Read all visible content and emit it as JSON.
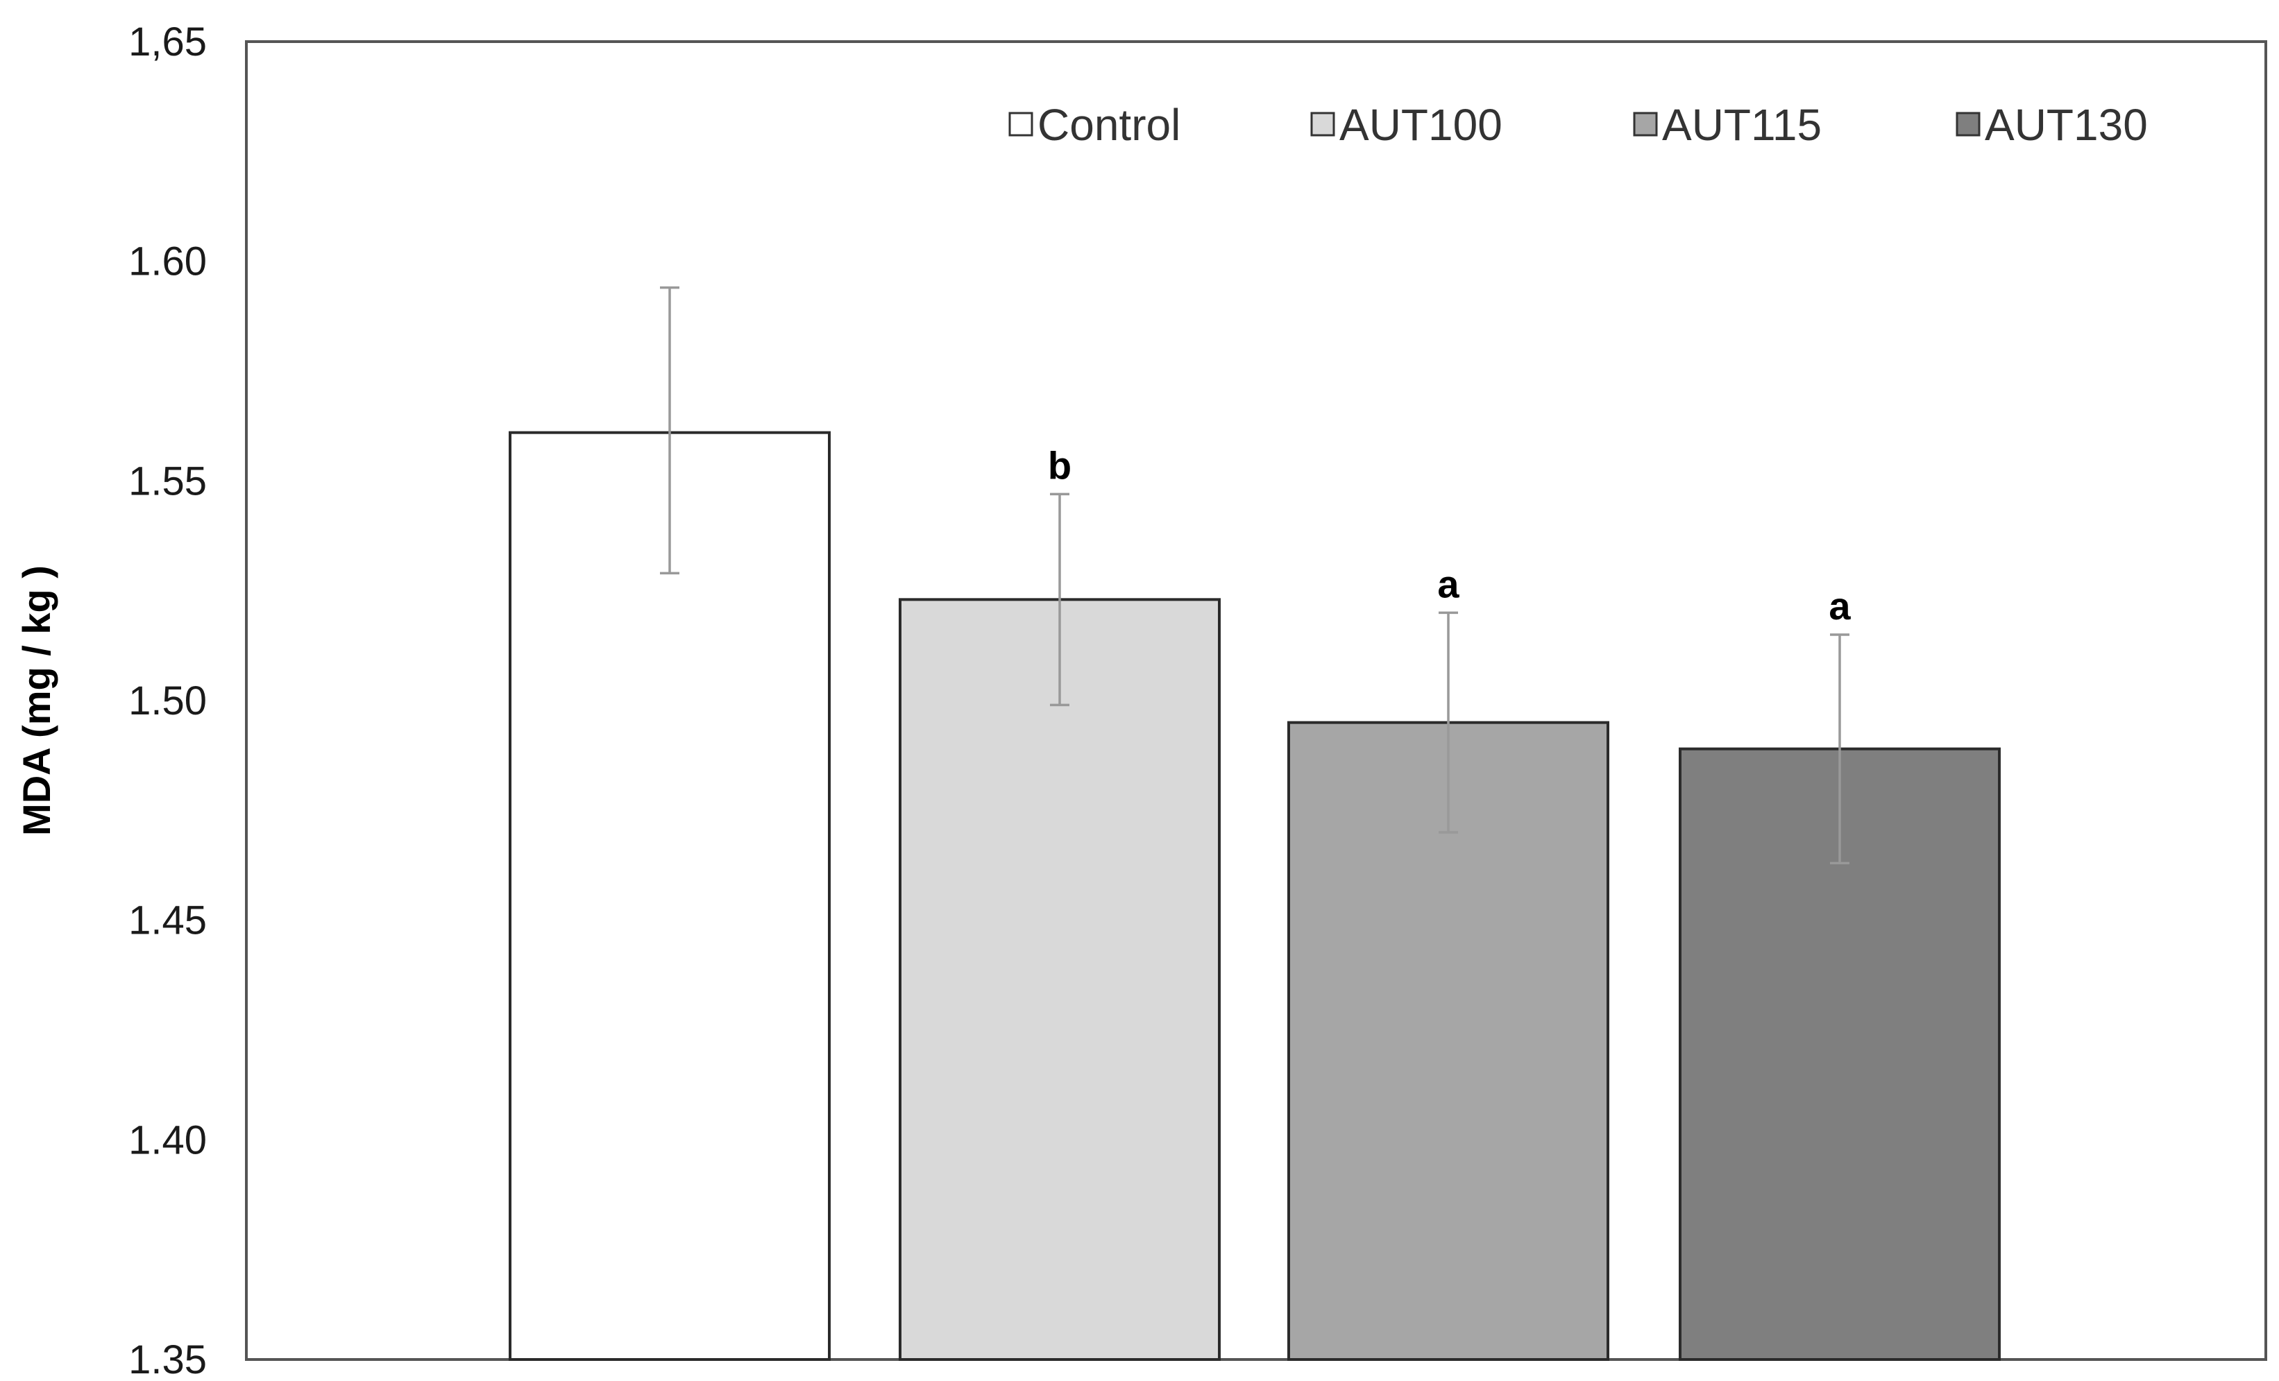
{
  "chart_data": {
    "type": "bar",
    "title": "",
    "xlabel": "",
    "ylabel": "MDA (mg / kg )",
    "ylim": [
      1.35,
      1.65
    ],
    "yticks": [
      1.35,
      1.4,
      1.45,
      1.5,
      1.55,
      1.6,
      1.65
    ],
    "ytick_labels": [
      "1.35",
      "1.40",
      "1.45",
      "1.50",
      "1.55",
      "1.60",
      "1,65"
    ],
    "grid": false,
    "legend_position": "top-right",
    "categories": [
      "Control",
      "AUT100",
      "AUT115",
      "AUT130"
    ],
    "values": [
      1.561,
      1.523,
      1.495,
      1.489
    ],
    "error_plus": [
      0.033,
      0.024,
      0.025,
      0.026
    ],
    "error_minus": [
      0.032,
      0.024,
      0.025,
      0.026
    ],
    "significance_labels": [
      "",
      "b",
      "a",
      "a"
    ],
    "colors": [
      "#ffffff",
      "#d9d9d9",
      "#a6a6a6",
      "#7f7f7f"
    ]
  }
}
